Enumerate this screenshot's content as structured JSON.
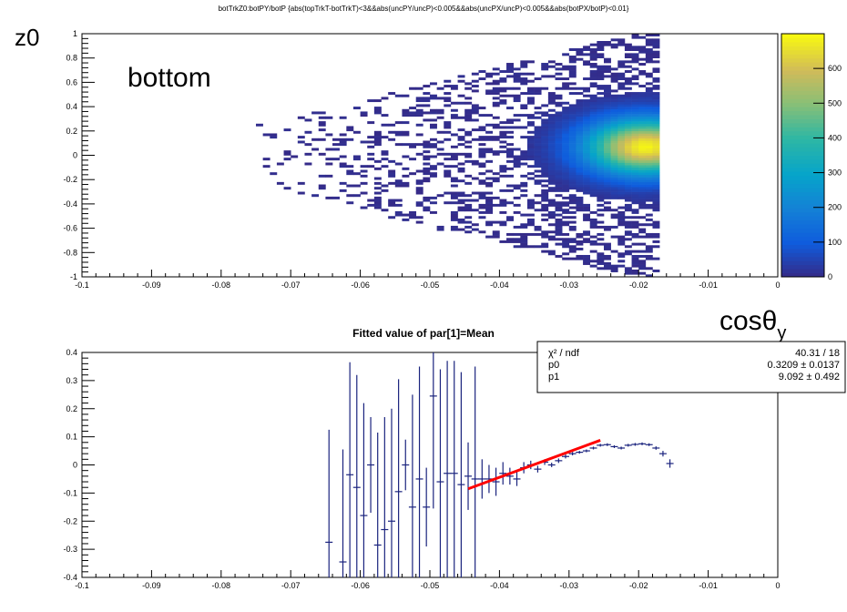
{
  "top_title": "botTrkZ0:botPY/botP {abs(topTrkT-botTrkT)<3&&abs(uncPY/uncP)<0.005&&abs(uncPX/uncP)<0.005&&abs(botPX/botP)<0.01}",
  "annotations": {
    "ylabel_top": "z0",
    "panel_label": "bottom",
    "xlabel_top_main": "cosθ",
    "xlabel_top_sub": "y"
  },
  "chart_data": [
    {
      "type": "heatmap",
      "title": "botTrkZ0:botPY/botP {abs(topTrkT-botTrkT)<3&&abs(uncPY/uncP)<0.005&&abs(uncPX/uncP)<0.005&&abs(botPX/botP)<0.01}",
      "xlabel": "cosθy",
      "ylabel": "z0",
      "xlim": [
        -0.1,
        0
      ],
      "ylim": [
        -1,
        1
      ],
      "x_ticks": [
        "-0.1",
        "-0.09",
        "-0.08",
        "-0.07",
        "-0.06",
        "-0.05",
        "-0.04",
        "-0.03",
        "-0.02",
        "-0.01",
        "0"
      ],
      "y_ticks": [
        "-1",
        "-0.8",
        "-0.6",
        "-0.4",
        "-0.2",
        "0",
        "0.2",
        "0.4",
        "0.6",
        "0.8",
        "1"
      ],
      "colorbar": {
        "min": 0,
        "max": 700,
        "ticks": [
          "0",
          "100",
          "200",
          "300",
          "400",
          "500",
          "600"
        ]
      },
      "hotspot": {
        "x": -0.019,
        "y": 0.07,
        "peak": 680,
        "sigma_x": 0.006,
        "sigma_y": 0.16
      },
      "occupied_x_range": [
        -0.076,
        -0.017
      ]
    },
    {
      "type": "scatter",
      "title": "Fitted value of par[1]=Mean",
      "xlim": [
        -0.1,
        0
      ],
      "ylim": [
        -0.4,
        0.4
      ],
      "x_ticks": [
        "-0.1",
        "-0.09",
        "-0.08",
        "-0.07",
        "-0.06",
        "-0.05",
        "-0.04",
        "-0.03",
        "-0.02",
        "-0.01",
        "0"
      ],
      "y_ticks": [
        "-0.4",
        "-0.3",
        "-0.2",
        "-0.1",
        "0",
        "0.1",
        "0.2",
        "0.3",
        "0.4"
      ],
      "points": [
        {
          "x": -0.0645,
          "y": -0.275,
          "err": 0.4
        },
        {
          "x": -0.0625,
          "y": -0.345,
          "err": 0.4
        },
        {
          "x": -0.0615,
          "y": -0.035,
          "err": 0.4
        },
        {
          "x": -0.0605,
          "y": -0.08,
          "err": 0.4
        },
        {
          "x": -0.0595,
          "y": -0.18,
          "err": 0.4
        },
        {
          "x": -0.0585,
          "y": 0.0,
          "err": 0.17
        },
        {
          "x": -0.0575,
          "y": -0.285,
          "err": 0.4
        },
        {
          "x": -0.0565,
          "y": -0.23,
          "err": 0.4
        },
        {
          "x": -0.0555,
          "y": -0.2,
          "err": 0.4
        },
        {
          "x": -0.0545,
          "y": -0.095,
          "err": 0.4
        },
        {
          "x": -0.0535,
          "y": 0.0,
          "err": 0.09
        },
        {
          "x": -0.0525,
          "y": -0.15,
          "err": 0.4
        },
        {
          "x": -0.0515,
          "y": -0.05,
          "err": 0.4
        },
        {
          "x": -0.0505,
          "y": -0.15,
          "err": 0.14
        },
        {
          "x": -0.0495,
          "y": 0.245,
          "err": 0.4
        },
        {
          "x": -0.0485,
          "y": -0.06,
          "err": 0.4
        },
        {
          "x": -0.0475,
          "y": -0.03,
          "err": 0.4
        },
        {
          "x": -0.0465,
          "y": -0.03,
          "err": 0.4
        },
        {
          "x": -0.0455,
          "y": -0.07,
          "err": 0.4
        },
        {
          "x": -0.0445,
          "y": -0.04,
          "err": 0.12
        },
        {
          "x": -0.0435,
          "y": -0.05,
          "err": 0.4
        },
        {
          "x": -0.0425,
          "y": -0.05,
          "err": 0.07
        },
        {
          "x": -0.0415,
          "y": -0.05,
          "err": 0.05
        },
        {
          "x": -0.0405,
          "y": -0.06,
          "err": 0.05
        },
        {
          "x": -0.0395,
          "y": -0.03,
          "err": 0.04
        },
        {
          "x": -0.0385,
          "y": -0.04,
          "err": 0.03
        },
        {
          "x": -0.0375,
          "y": -0.05,
          "err": 0.025
        },
        {
          "x": -0.0365,
          "y": -0.01,
          "err": 0.02
        },
        {
          "x": -0.0355,
          "y": 0.0,
          "err": 0.015
        },
        {
          "x": -0.0345,
          "y": -0.015,
          "err": 0.012
        },
        {
          "x": -0.0335,
          "y": 0.01,
          "err": 0.01
        },
        {
          "x": -0.0325,
          "y": 0.0,
          "err": 0.008
        },
        {
          "x": -0.0315,
          "y": 0.015,
          "err": 0.008
        },
        {
          "x": -0.0305,
          "y": 0.03,
          "err": 0.007
        },
        {
          "x": -0.0295,
          "y": 0.04,
          "err": 0.006
        },
        {
          "x": -0.0285,
          "y": 0.045,
          "err": 0.005
        },
        {
          "x": -0.0275,
          "y": 0.05,
          "err": 0.005
        },
        {
          "x": -0.0265,
          "y": 0.06,
          "err": 0.005
        },
        {
          "x": -0.0255,
          "y": 0.07,
          "err": 0.005
        },
        {
          "x": -0.0245,
          "y": 0.072,
          "err": 0.005
        },
        {
          "x": -0.0235,
          "y": 0.065,
          "err": 0.005
        },
        {
          "x": -0.0225,
          "y": 0.06,
          "err": 0.005
        },
        {
          "x": -0.0215,
          "y": 0.07,
          "err": 0.005
        },
        {
          "x": -0.0205,
          "y": 0.073,
          "err": 0.005
        },
        {
          "x": -0.0195,
          "y": 0.075,
          "err": 0.005
        },
        {
          "x": -0.0185,
          "y": 0.072,
          "err": 0.005
        },
        {
          "x": -0.0175,
          "y": 0.06,
          "err": 0.006
        },
        {
          "x": -0.0165,
          "y": 0.04,
          "err": 0.01
        },
        {
          "x": -0.0155,
          "y": 0.005,
          "err": 0.015
        }
      ],
      "fit_line": {
        "x": [
          -0.0445,
          -0.0255
        ],
        "p0": 0.3209,
        "p1": 9.092,
        "color": "#ff0000"
      },
      "stats": [
        {
          "label": "χ² / ndf",
          "value": "40.31 / 18"
        },
        {
          "label": "p0",
          "value": "0.3209 ± 0.0137"
        },
        {
          "label": "p1",
          "value": "9.092 ± 0.492"
        }
      ]
    }
  ]
}
